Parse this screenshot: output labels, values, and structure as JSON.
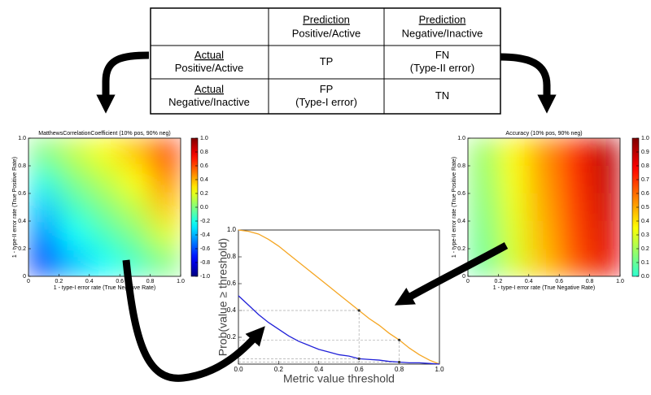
{
  "table": {
    "columns": [
      {
        "head": "Prediction",
        "sub": "Positive/Active"
      },
      {
        "head": "Prediction",
        "sub": "Negative/Inactive"
      }
    ],
    "rows": [
      {
        "head": "Actual",
        "sub": "Positive/Active",
        "cells": [
          [
            "TP"
          ],
          [
            "FN",
            "(Type-II error)"
          ]
        ]
      },
      {
        "head": "Actual",
        "sub": "Negative/Inactive",
        "cells": [
          [
            "FP",
            "(Type-I error)"
          ],
          [
            "TN"
          ]
        ]
      }
    ]
  },
  "heatmaps": [
    {
      "title": "MatthewsCorrelationCoefficient (10% pos, 90% neg)",
      "xlabel": "1 - type-I error rate (True Negative Rate)",
      "ylabel": "1 - type-II error rate (True Positive Rate)",
      "xlim": [
        0,
        1
      ],
      "ylim": [
        0,
        1
      ],
      "xticks": [
        0,
        0.2,
        0.4,
        0.6,
        0.8,
        {
          "value": 1,
          "label": "1.0"
        }
      ],
      "yticks": [
        0,
        0.2,
        0.4,
        0.6,
        0.8,
        {
          "value": 1,
          "label": "1.0"
        }
      ],
      "colormap": "jet",
      "clim": [
        -1,
        1
      ],
      "cticks": [
        {
          "value": 1,
          "label": "1.0"
        },
        0.8,
        0.6,
        0.4,
        0.2,
        {
          "value": 0,
          "label": "0.0"
        },
        -0.2,
        -0.4,
        -0.6,
        -0.8,
        {
          "value": -1,
          "label": "-1.0"
        }
      ],
      "values": [
        [
          0.0,
          0.13,
          0.24,
          0.38,
          0.63
        ],
        [
          -0.18,
          0.0,
          0.12,
          0.25,
          0.49
        ],
        [
          -0.35,
          -0.13,
          0.0,
          0.13,
          0.35
        ],
        [
          -0.49,
          -0.25,
          -0.12,
          0.0,
          0.18
        ],
        [
          -0.63,
          -0.38,
          -0.24,
          -0.13,
          0.0
        ]
      ]
    },
    {
      "title": "Accuracy (10% pos, 90% neg)",
      "xlabel": "1 - type-I error rate (True Negative Rate)",
      "ylabel": "1 - type-II error rate (True Positive Rate)",
      "xlim": [
        0,
        1
      ],
      "ylim": [
        0,
        1
      ],
      "xticks": [
        0,
        0.2,
        0.4,
        0.6,
        0.8,
        {
          "value": 1,
          "label": "1.0"
        }
      ],
      "yticks": [
        0,
        0.2,
        0.4,
        0.6,
        0.8,
        {
          "value": 1,
          "label": "1.0"
        }
      ],
      "colormap": "jet-warm",
      "clim": [
        0,
        1
      ],
      "cticks": [
        {
          "value": 1,
          "label": "1.0"
        },
        0.9,
        0.8,
        0.7,
        0.6,
        0.5,
        0.4,
        0.3,
        0.2,
        0.1,
        {
          "value": 0,
          "label": "0.0"
        }
      ],
      "values": [
        [
          0.18,
          0.36,
          0.54,
          0.72,
          0.9
        ],
        [
          0.16,
          0.34,
          0.52,
          0.7,
          0.88
        ],
        [
          0.14,
          0.32,
          0.5,
          0.68,
          0.86
        ],
        [
          0.12,
          0.3,
          0.48,
          0.66,
          0.84
        ],
        [
          0.1,
          0.28,
          0.46,
          0.64,
          0.82
        ]
      ]
    }
  ],
  "threshold_chart": {
    "type": "line",
    "xlabel": "Metric value threshold",
    "ylabel": "Prob(value ≥ threshold)",
    "xlim": [
      0,
      1
    ],
    "ylim": [
      0,
      1
    ],
    "xticks": [
      {
        "value": 0,
        "label": "0.0"
      },
      0.2,
      0.4,
      0.6,
      0.8,
      {
        "value": 1,
        "label": "1.0"
      }
    ],
    "yticks": [
      0.2,
      0.4,
      0.6,
      0.8,
      {
        "value": 1,
        "label": "1.0"
      }
    ],
    "reference_x": [
      0.6,
      0.8
    ],
    "x": [
      0,
      0.05,
      0.1,
      0.15,
      0.2,
      0.25,
      0.3,
      0.35,
      0.4,
      0.45,
      0.5,
      0.55,
      0.6,
      0.65,
      0.7,
      0.75,
      0.8,
      0.85,
      0.9,
      0.95,
      1
    ],
    "series": [
      {
        "color": "#f5a623",
        "values": [
          1.0,
          0.99,
          0.97,
          0.93,
          0.88,
          0.82,
          0.76,
          0.7,
          0.64,
          0.58,
          0.52,
          0.46,
          0.4,
          0.34,
          0.29,
          0.23,
          0.18,
          0.12,
          0.07,
          0.03,
          0.0
        ]
      },
      {
        "color": "#2020d8",
        "values": [
          0.51,
          0.44,
          0.37,
          0.31,
          0.26,
          0.21,
          0.17,
          0.14,
          0.11,
          0.09,
          0.07,
          0.06,
          0.04,
          0.035,
          0.03,
          0.02,
          0.015,
          0.01,
          0.01,
          0.005,
          0.0
        ]
      }
    ]
  }
}
